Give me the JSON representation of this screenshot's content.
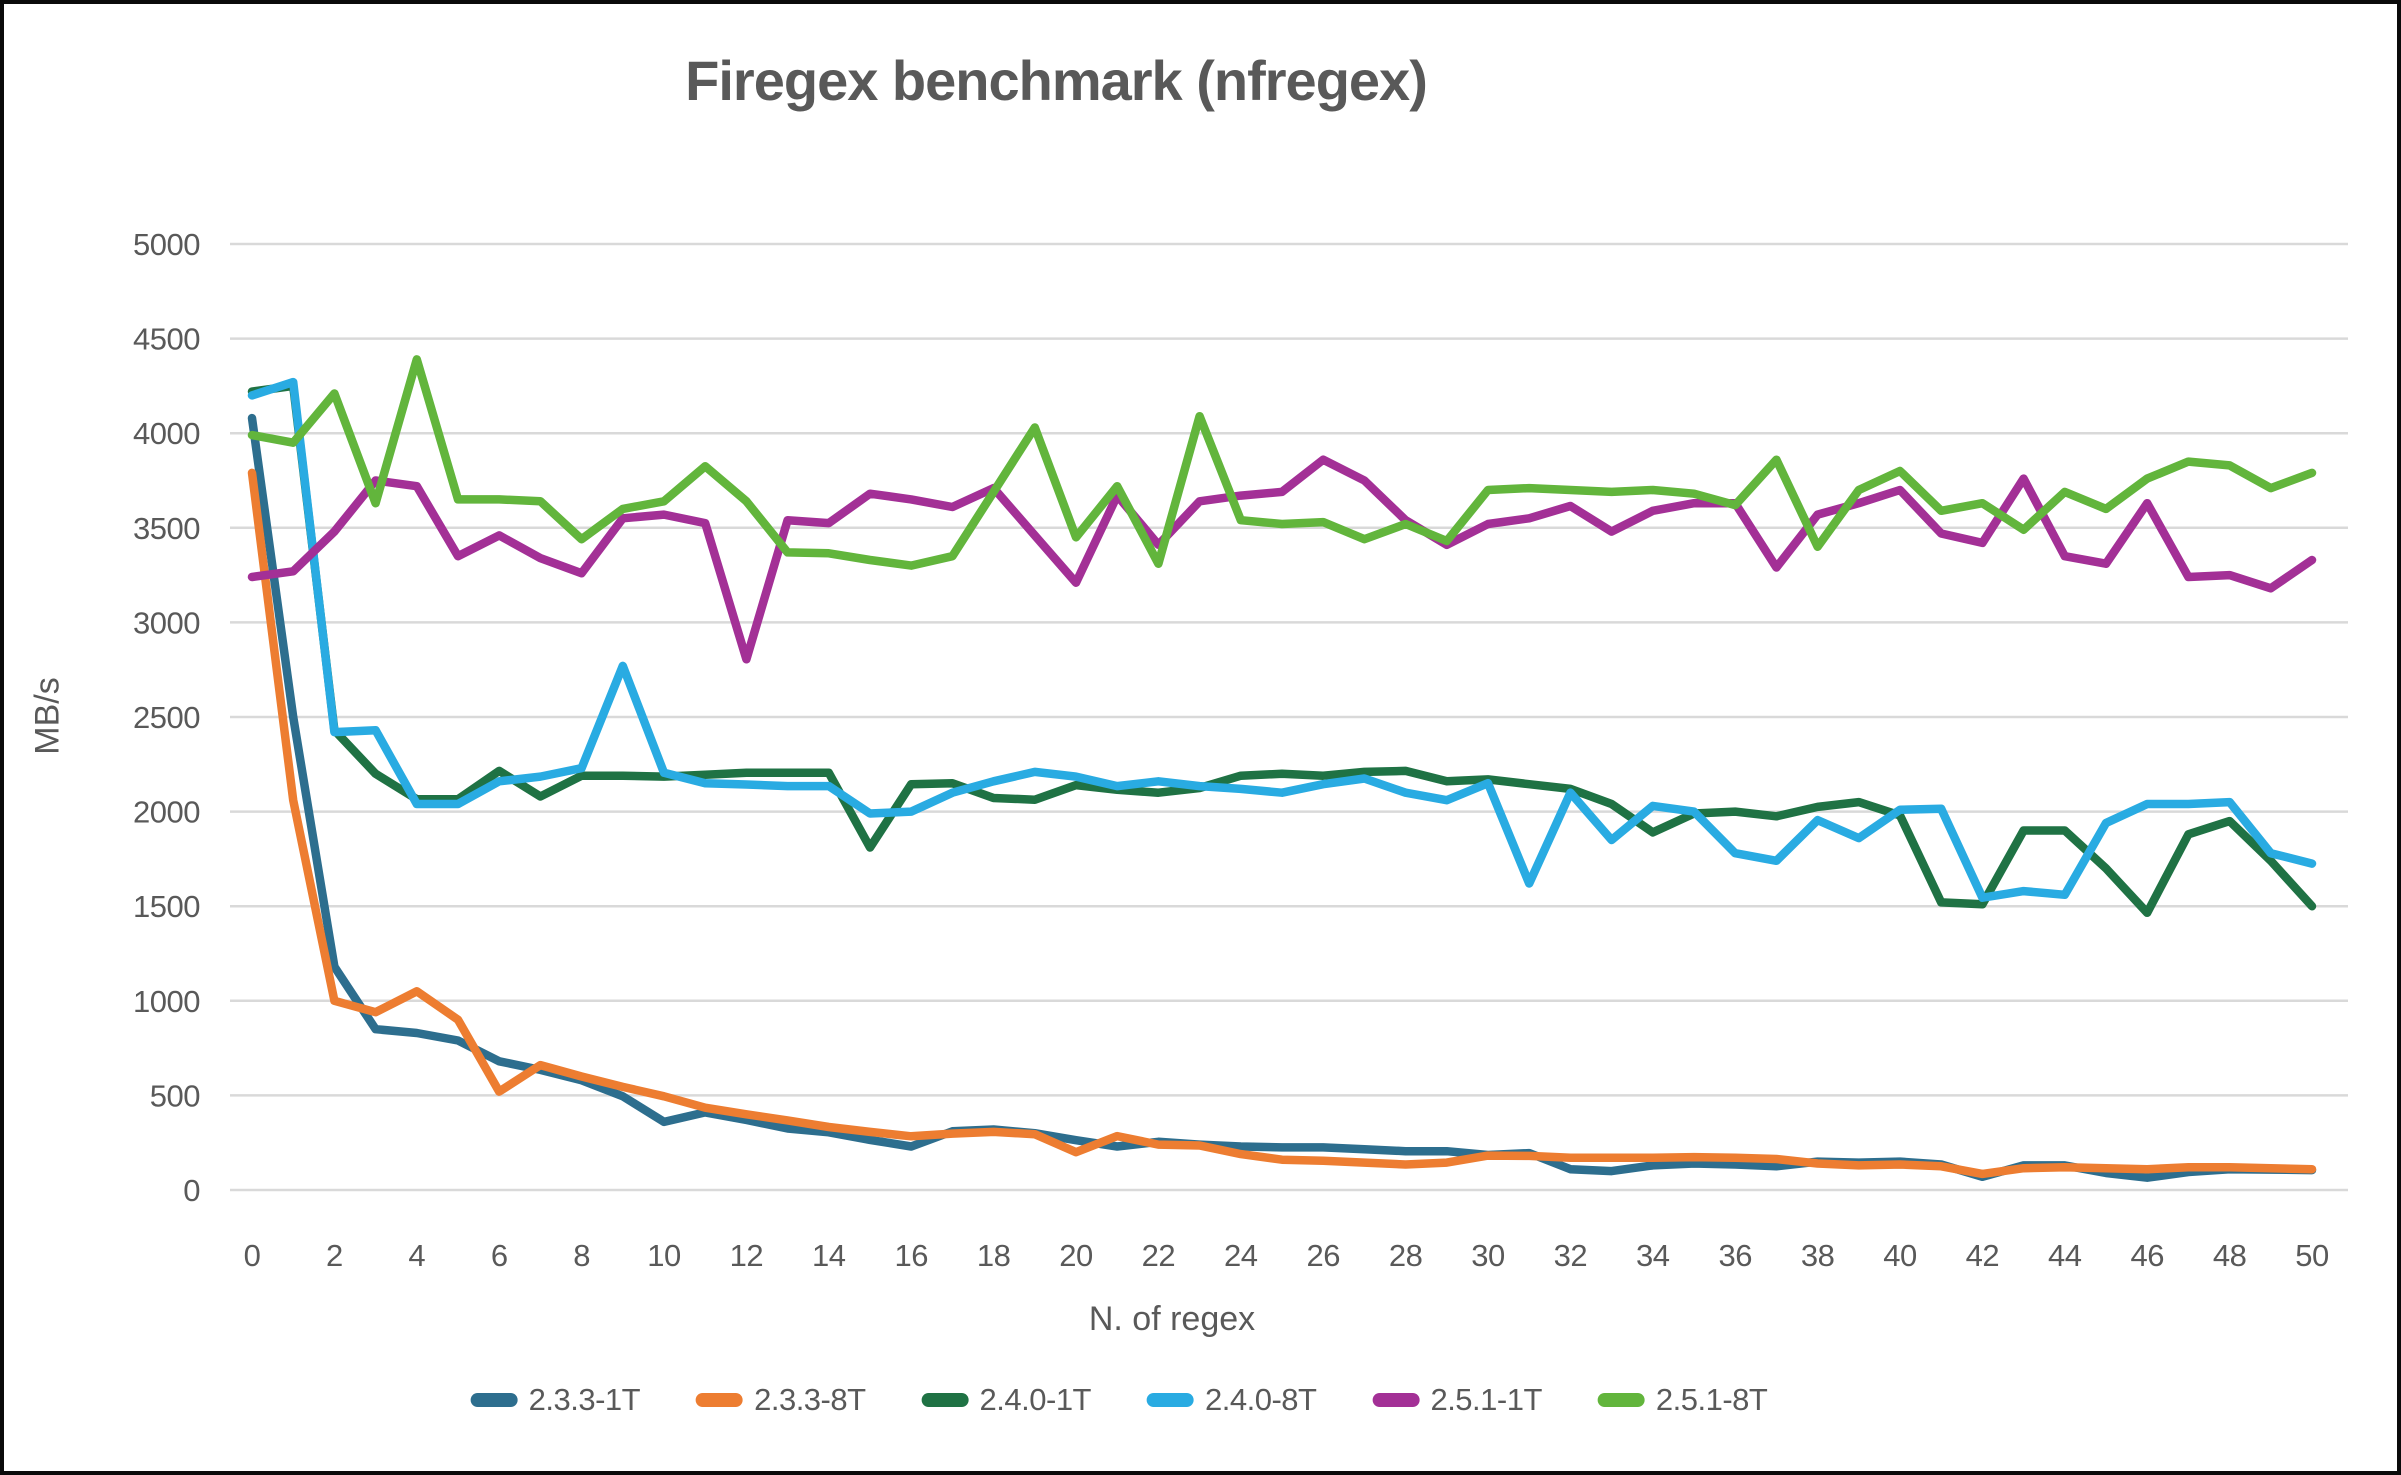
{
  "chart": {
    "title": "Firegex benchmark (nfregex)",
    "y_axis_title": "MB/s",
    "x_axis_title": "N. of regex"
  },
  "chart_data": {
    "type": "line",
    "title": "Firegex benchmark (nfregex)",
    "xlabel": "N. of regex",
    "ylabel": "MB/s",
    "xlim": [
      0,
      50
    ],
    "ylim": [
      0,
      5000
    ],
    "y_ticks": [
      0,
      500,
      1000,
      1500,
      2000,
      2500,
      3000,
      3500,
      4000,
      4500,
      5000
    ],
    "x_ticks": [
      0,
      2,
      4,
      6,
      8,
      10,
      12,
      14,
      16,
      18,
      20,
      22,
      24,
      26,
      28,
      30,
      32,
      34,
      36,
      38,
      40,
      42,
      44,
      46,
      48,
      50
    ],
    "grid": "horizontal",
    "legend_position": "bottom",
    "gridline_color": "#D9D9D9",
    "text_color": "#595959",
    "x": [
      0,
      1,
      2,
      3,
      4,
      5,
      6,
      7,
      8,
      9,
      10,
      11,
      12,
      13,
      14,
      15,
      16,
      17,
      18,
      19,
      20,
      21,
      22,
      23,
      24,
      25,
      26,
      27,
      28,
      29,
      30,
      31,
      32,
      33,
      34,
      35,
      36,
      37,
      38,
      39,
      40,
      41,
      42,
      43,
      44,
      45,
      46,
      47,
      48,
      49,
      50
    ],
    "series": [
      {
        "name": "2.3.3-1T",
        "color": "#2D6E8E",
        "values": [
          4080,
          2500,
          1180,
          850,
          830,
          790,
          680,
          635,
          580,
          495,
          360,
          410,
          370,
          325,
          305,
          265,
          230,
          310,
          320,
          300,
          263,
          230,
          255,
          240,
          230,
          225,
          225,
          215,
          205,
          205,
          185,
          195,
          110,
          100,
          130,
          140,
          135,
          125,
          150,
          145,
          150,
          135,
          70,
          130,
          130,
          90,
          65,
          95,
          110,
          108,
          105
        ]
      },
      {
        "name": "2.3.3-8T",
        "color": "#ED7D31",
        "values": [
          3790,
          2060,
          1000,
          940,
          1050,
          900,
          520,
          660,
          600,
          545,
          495,
          435,
          400,
          368,
          333,
          307,
          284,
          298,
          307,
          295,
          200,
          285,
          240,
          235,
          190,
          160,
          155,
          145,
          135,
          145,
          182,
          180,
          170,
          170,
          170,
          174,
          170,
          164,
          140,
          130,
          135,
          125,
          85,
          115,
          120,
          115,
          110,
          120,
          120,
          115,
          110
        ]
      },
      {
        "name": "2.4.0-1T",
        "color": "#1F7244",
        "values": [
          4220,
          4250,
          2430,
          2200,
          2065,
          2065,
          2215,
          2080,
          2190,
          2190,
          2185,
          2195,
          2205,
          2205,
          2205,
          1810,
          2145,
          2150,
          2072,
          2063,
          2140,
          2115,
          2100,
          2125,
          2190,
          2200,
          2190,
          2210,
          2215,
          2160,
          2170,
          2145,
          2120,
          2040,
          1890,
          1990,
          2000,
          1975,
          2025,
          2050,
          1980,
          1520,
          1510,
          1900,
          1900,
          1700,
          1465,
          1880,
          1950,
          1740,
          1500
        ]
      },
      {
        "name": "2.4.0-8T",
        "color": "#29ABE2",
        "values": [
          4200,
          4270,
          2420,
          2430,
          2040,
          2040,
          2160,
          2185,
          2230,
          2770,
          2205,
          2150,
          2143,
          2135,
          2135,
          1990,
          2000,
          2100,
          2160,
          2210,
          2185,
          2135,
          2160,
          2135,
          2120,
          2100,
          2145,
          2175,
          2100,
          2060,
          2150,
          1620,
          2100,
          1850,
          2030,
          2000,
          1780,
          1740,
          1955,
          1860,
          2010,
          2015,
          1545,
          1580,
          1560,
          1940,
          2040,
          2040,
          2050,
          1780,
          1725
        ]
      },
      {
        "name": "2.5.1-1T",
        "color": "#A33096",
        "values": [
          3240,
          3270,
          3480,
          3750,
          3720,
          3350,
          3460,
          3340,
          3260,
          3550,
          3570,
          3525,
          2805,
          3540,
          3525,
          3680,
          3650,
          3610,
          3710,
          3460,
          3210,
          3670,
          3410,
          3640,
          3670,
          3690,
          3860,
          3750,
          3540,
          3410,
          3520,
          3550,
          3615,
          3480,
          3590,
          3630,
          3630,
          3290,
          3570,
          3630,
          3700,
          3470,
          3420,
          3760,
          3350,
          3310,
          3630,
          3240,
          3250,
          3180,
          3330
        ]
      },
      {
        "name": "2.5.1-8T",
        "color": "#62B53C",
        "values": [
          3990,
          3950,
          4210,
          3630,
          4390,
          3650,
          3650,
          3640,
          3440,
          3600,
          3640,
          3825,
          3640,
          3370,
          3365,
          3330,
          3300,
          3350,
          3690,
          4030,
          3450,
          3720,
          3310,
          4090,
          3540,
          3520,
          3530,
          3440,
          3520,
          3430,
          3700,
          3710,
          3700,
          3690,
          3700,
          3680,
          3620,
          3860,
          3400,
          3700,
          3800,
          3590,
          3630,
          3490,
          3690,
          3600,
          3760,
          3850,
          3830,
          3710,
          3790
        ]
      }
    ]
  }
}
